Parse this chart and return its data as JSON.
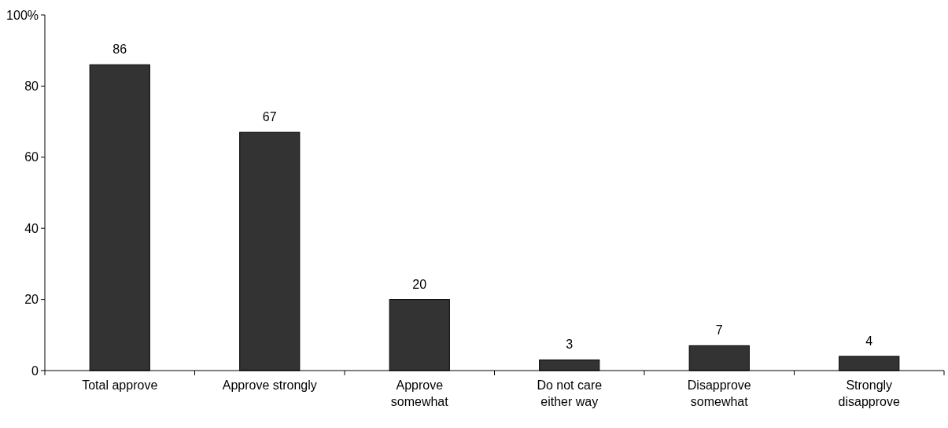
{
  "chart_data": {
    "type": "bar",
    "categories": [
      "Total approve",
      "Approve strongly",
      "Approve somewhat",
      "Do not care either way",
      "Disapprove somewhat",
      "Strongly disapprove"
    ],
    "values": [
      86,
      67,
      20,
      3,
      7,
      4
    ],
    "color": "#333333",
    "ylim": [
      0,
      100
    ],
    "yticks": [
      0,
      20,
      40,
      60,
      80,
      {
        "value": 100,
        "label": "100%"
      }
    ],
    "data_labels": true,
    "grid": false
  }
}
